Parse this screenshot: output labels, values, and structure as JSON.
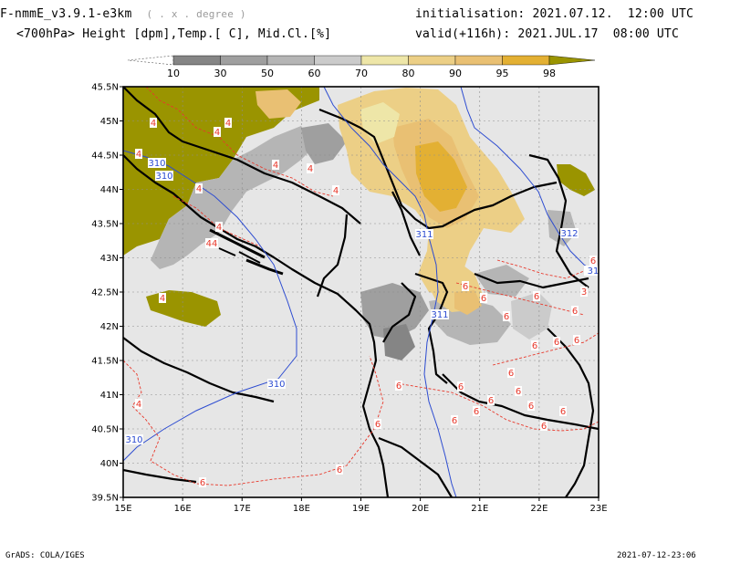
{
  "header": {
    "title_main": "F-nmmE_v3.9.1-e3km",
    "title_suffix": "( . x . degree )",
    "subtitle": "<700hPa> Height [dpm],Temp.[ C], Mid.Cl.[%]",
    "init_label": "initialisation:",
    "init_value": "2021.07.12.",
    "init_time": "12:00 UTC",
    "valid_label": "valid(+116h):",
    "valid_value": "2021.JUL.17",
    "valid_time": "08:00 UTC"
  },
  "colorbar": {
    "labels": [
      "10",
      "30",
      "50",
      "60",
      "70",
      "80",
      "90",
      "95",
      "98"
    ],
    "colors": [
      "#ffffff",
      "#858585",
      "#9f9f9f",
      "#b5b5b5",
      "#cbcbcb",
      "#eee6a8",
      "#eccf86",
      "#e9c073",
      "#e3b033",
      "#9a9400"
    ]
  },
  "map": {
    "lat_labels": [
      "45.5N",
      "45N",
      "44.5N",
      "44N",
      "43.5N",
      "43N",
      "42.5N",
      "42N",
      "41.5N",
      "41N",
      "40.5N",
      "40N",
      "39.5N"
    ],
    "lon_labels": [
      "15E",
      "16E",
      "17E",
      "18E",
      "19E",
      "20E",
      "21E",
      "22E",
      "23E"
    ],
    "background_color": "#e6e6e6",
    "contour_labels": {
      "height": [
        "310",
        "310",
        "311",
        "311",
        "312",
        "31",
        "310",
        "310"
      ],
      "temp_red": [
        "4",
        "4",
        "4",
        "4",
        "4",
        "4",
        "4",
        "44",
        "4",
        "4",
        "4",
        "4",
        "6",
        "6",
        "6",
        "6",
        "6",
        "6",
        "6",
        "6",
        "6",
        "6",
        "6",
        "6",
        "6",
        "6",
        "6",
        "6",
        "6",
        "6",
        "6",
        "6",
        "6",
        "6",
        "3"
      ]
    }
  },
  "footer": {
    "left": "GrADS: COLA/IGES",
    "right": "2021-07-12-23:06"
  }
}
